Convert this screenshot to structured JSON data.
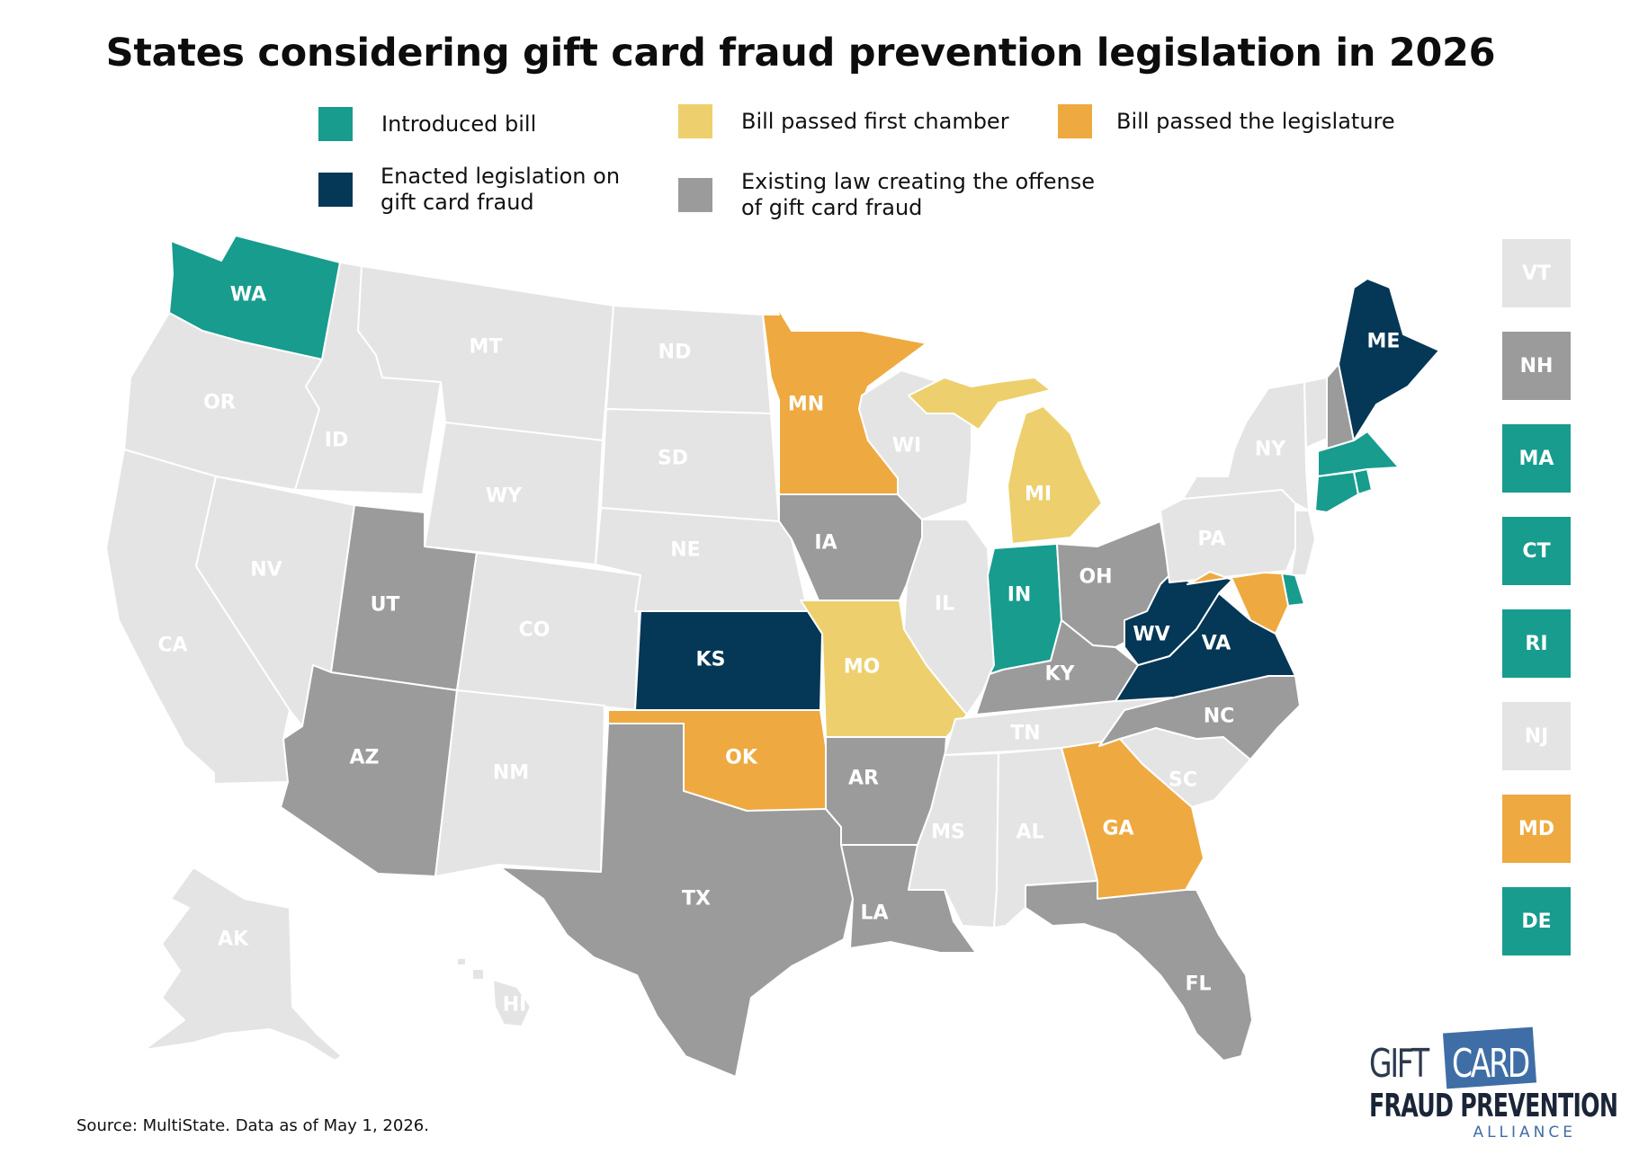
{
  "title": "States considering gift card fraud prevention legislation in 2026",
  "colors": {
    "introduced": "#179c8e",
    "passed_first": "#edd06d",
    "passed_legislature": "#eea940",
    "enacted": "#053756",
    "existing": "#9b9b9b",
    "none": "#e4e4e4"
  },
  "legend": [
    {
      "key": "introduced",
      "label": "Introduced bill"
    },
    {
      "key": "passed_first",
      "label": "Bill passed first chamber"
    },
    {
      "key": "passed_legislature",
      "label": "Bill passed the legislature"
    },
    {
      "key": "enacted",
      "label": "Enacted legislation on\ngift card fraud"
    },
    {
      "key": "existing",
      "label": "Existing law creating the offense\nof gift card fraud"
    }
  ],
  "states": [
    {
      "abbr": "WA",
      "status": "introduced"
    },
    {
      "abbr": "OR",
      "status": "none"
    },
    {
      "abbr": "CA",
      "status": "none"
    },
    {
      "abbr": "ID",
      "status": "none"
    },
    {
      "abbr": "NV",
      "status": "none"
    },
    {
      "abbr": "MT",
      "status": "none"
    },
    {
      "abbr": "WY",
      "status": "none"
    },
    {
      "abbr": "UT",
      "status": "existing"
    },
    {
      "abbr": "AZ",
      "status": "existing"
    },
    {
      "abbr": "CO",
      "status": "none"
    },
    {
      "abbr": "NM",
      "status": "none"
    },
    {
      "abbr": "ND",
      "status": "none"
    },
    {
      "abbr": "SD",
      "status": "none"
    },
    {
      "abbr": "NE",
      "status": "none"
    },
    {
      "abbr": "KS",
      "status": "enacted"
    },
    {
      "abbr": "OK",
      "status": "passed_legislature"
    },
    {
      "abbr": "TX",
      "status": "existing"
    },
    {
      "abbr": "MN",
      "status": "passed_legislature"
    },
    {
      "abbr": "IA",
      "status": "existing"
    },
    {
      "abbr": "MO",
      "status": "passed_first"
    },
    {
      "abbr": "AR",
      "status": "existing"
    },
    {
      "abbr": "LA",
      "status": "existing"
    },
    {
      "abbr": "WI",
      "status": "none"
    },
    {
      "abbr": "IL",
      "status": "none"
    },
    {
      "abbr": "MI",
      "status": "passed_first"
    },
    {
      "abbr": "IN",
      "status": "introduced"
    },
    {
      "abbr": "OH",
      "status": "existing"
    },
    {
      "abbr": "KY",
      "status": "existing"
    },
    {
      "abbr": "TN",
      "status": "none"
    },
    {
      "abbr": "MS",
      "status": "none"
    },
    {
      "abbr": "AL",
      "status": "none"
    },
    {
      "abbr": "GA",
      "status": "passed_legislature"
    },
    {
      "abbr": "FL",
      "status": "existing"
    },
    {
      "abbr": "SC",
      "status": "none"
    },
    {
      "abbr": "NC",
      "status": "existing"
    },
    {
      "abbr": "VA",
      "status": "enacted"
    },
    {
      "abbr": "WV",
      "status": "enacted"
    },
    {
      "abbr": "PA",
      "status": "none"
    },
    {
      "abbr": "NY",
      "status": "none"
    },
    {
      "abbr": "ME",
      "status": "enacted"
    },
    {
      "abbr": "AK",
      "status": "none"
    },
    {
      "abbr": "HI",
      "status": "none"
    },
    {
      "abbr": "VT",
      "status": "none"
    },
    {
      "abbr": "NH",
      "status": "existing"
    },
    {
      "abbr": "MA",
      "status": "introduced"
    },
    {
      "abbr": "CT",
      "status": "introduced"
    },
    {
      "abbr": "RI",
      "status": "introduced"
    },
    {
      "abbr": "NJ",
      "status": "none"
    },
    {
      "abbr": "MD",
      "status": "passed_legislature"
    },
    {
      "abbr": "DE",
      "status": "introduced"
    }
  ],
  "source": "Source: MultiState. Data as of May 1, 2026.",
  "logo": {
    "line1a": "GIFT",
    "line1b": "CARD",
    "line2": "FRAUD PREVENTION",
    "line3": "ALLIANCE"
  }
}
